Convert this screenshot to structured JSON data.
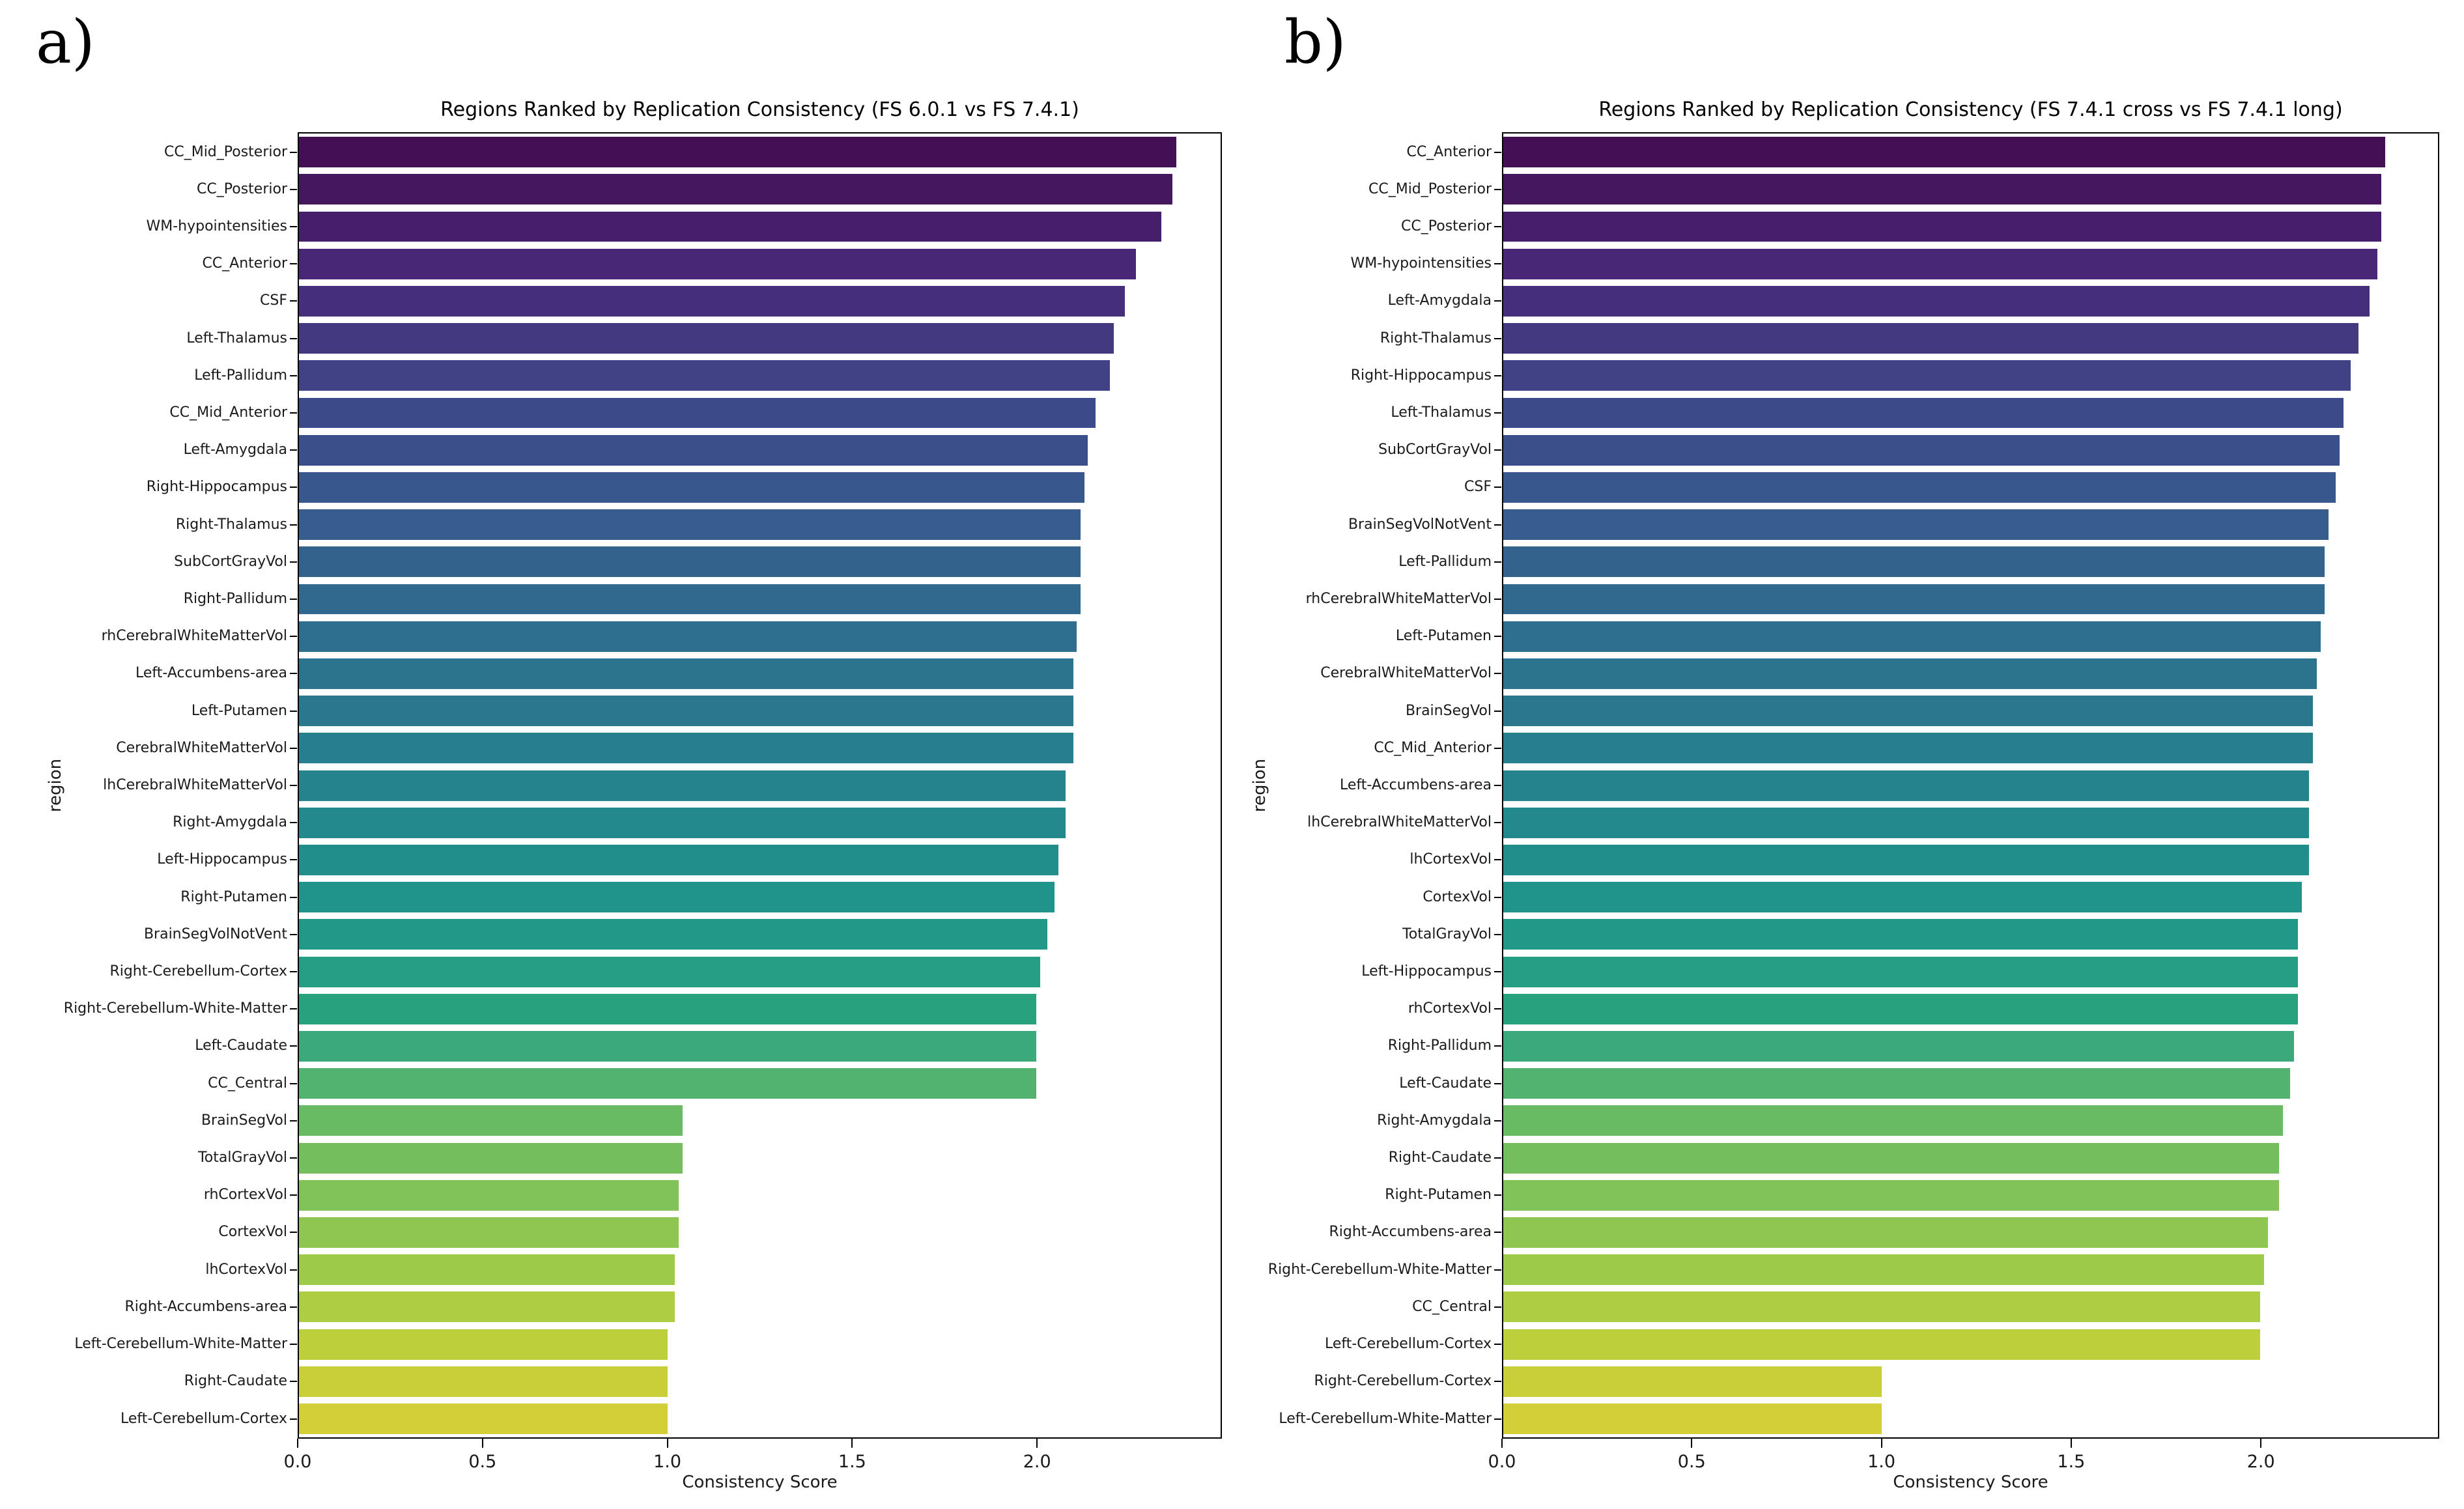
{
  "figure": {
    "background": "#ffffff",
    "panels": [
      {
        "label": "a)"
      },
      {
        "label": "b)"
      }
    ]
  },
  "colors": {
    "palette_name": "viridis",
    "viridis_stops": [
      {
        "t": 0.0,
        "hex": "#440f54"
      },
      {
        "t": 0.1,
        "hex": "#472a7a"
      },
      {
        "t": 0.2,
        "hex": "#3e4989"
      },
      {
        "t": 0.3,
        "hex": "#355e8d"
      },
      {
        "t": 0.4,
        "hex": "#2d718e"
      },
      {
        "t": 0.5,
        "hex": "#25838d"
      },
      {
        "t": 0.6,
        "hex": "#1f968a"
      },
      {
        "t": 0.68,
        "hex": "#27a37f"
      },
      {
        "t": 0.72,
        "hex": "#46ad76"
      },
      {
        "t": 0.76,
        "hex": "#66b964"
      },
      {
        "t": 0.82,
        "hex": "#7fc25a"
      },
      {
        "t": 0.88,
        "hex": "#9cca4a"
      },
      {
        "t": 0.94,
        "hex": "#bdd03b"
      },
      {
        "t": 1.0,
        "hex": "#d2cf38"
      }
    ],
    "spine": "#000000",
    "text": "#1a1a1a"
  },
  "chart_data": [
    {
      "type": "bar",
      "orientation": "horizontal",
      "panel_label": "a)",
      "title": "Regions Ranked by Replication Consistency (FS 6.0.1 vs FS 7.4.1)",
      "xlabel": "Consistency Score",
      "ylabel": "region",
      "xlim": [
        0,
        2.5
      ],
      "x_ticks": [
        0.0,
        0.5,
        1.0,
        1.5,
        2.0
      ],
      "x_tick_labels": [
        "0.0",
        "0.5",
        "1.0",
        "1.5",
        "2.0"
      ],
      "grid": false,
      "legend": null,
      "palette": "viridis",
      "categories": [
        "CC_Mid_Posterior",
        "CC_Posterior",
        "WM-hypointensities",
        "CC_Anterior",
        "CSF",
        "Left-Thalamus",
        "Left-Pallidum",
        "CC_Mid_Anterior",
        "Left-Amygdala",
        "Right-Hippocampus",
        "Right-Thalamus",
        "SubCortGrayVol",
        "Right-Pallidum",
        "rhCerebralWhiteMatterVol",
        "Left-Accumbens-area",
        "Left-Putamen",
        "CerebralWhiteMatterVol",
        "lhCerebralWhiteMatterVol",
        "Right-Amygdala",
        "Left-Hippocampus",
        "Right-Putamen",
        "BrainSegVolNotVent",
        "Right-Cerebellum-Cortex",
        "Right-Cerebellum-White-Matter",
        "Left-Caudate",
        "CC_Central",
        "BrainSegVol",
        "TotalGrayVol",
        "rhCortexVol",
        "CortexVol",
        "lhCortexVol",
        "Right-Accumbens-area",
        "Left-Cerebellum-White-Matter",
        "Right-Caudate",
        "Left-Cerebellum-Cortex"
      ],
      "values": [
        2.38,
        2.37,
        2.34,
        2.27,
        2.24,
        2.21,
        2.2,
        2.16,
        2.14,
        2.13,
        2.12,
        2.12,
        2.12,
        2.11,
        2.1,
        2.1,
        2.1,
        2.08,
        2.08,
        2.06,
        2.05,
        2.03,
        2.01,
        2.0,
        2.0,
        2.0,
        1.04,
        1.04,
        1.03,
        1.03,
        1.02,
        1.02,
        1.0,
        1.0,
        1.0
      ]
    },
    {
      "type": "bar",
      "orientation": "horizontal",
      "panel_label": "b)",
      "title": "Regions Ranked by Replication Consistency (FS 7.4.1 cross vs FS 7.4.1 long)",
      "xlabel": "Consistency Score",
      "ylabel": "region",
      "xlim": [
        0,
        2.47
      ],
      "x_ticks": [
        0.0,
        0.5,
        1.0,
        1.5,
        2.0
      ],
      "x_tick_labels": [
        "0.0",
        "0.5",
        "1.0",
        "1.5",
        "2.0"
      ],
      "grid": false,
      "legend": null,
      "palette": "viridis",
      "categories": [
        "CC_Anterior",
        "CC_Mid_Posterior",
        "CC_Posterior",
        "WM-hypointensities",
        "Left-Amygdala",
        "Right-Thalamus",
        "Right-Hippocampus",
        "Left-Thalamus",
        "SubCortGrayVol",
        "CSF",
        "BrainSegVolNotVent",
        "Left-Pallidum",
        "rhCerebralWhiteMatterVol",
        "Left-Putamen",
        "CerebralWhiteMatterVol",
        "BrainSegVol",
        "CC_Mid_Anterior",
        "Left-Accumbens-area",
        "lhCerebralWhiteMatterVol",
        "lhCortexVol",
        "CortexVol",
        "TotalGrayVol",
        "Left-Hippocampus",
        "rhCortexVol",
        "Right-Pallidum",
        "Left-Caudate",
        "Right-Amygdala",
        "Right-Caudate",
        "Right-Putamen",
        "Right-Accumbens-area",
        "Right-Cerebellum-White-Matter",
        "CC_Central",
        "Left-Cerebellum-Cortex",
        "Right-Cerebellum-Cortex",
        "Left-Cerebellum-White-Matter"
      ],
      "values": [
        2.33,
        2.32,
        2.32,
        2.31,
        2.29,
        2.26,
        2.24,
        2.22,
        2.21,
        2.2,
        2.18,
        2.17,
        2.17,
        2.16,
        2.15,
        2.14,
        2.14,
        2.13,
        2.13,
        2.13,
        2.11,
        2.1,
        2.1,
        2.1,
        2.09,
        2.08,
        2.06,
        2.05,
        2.05,
        2.02,
        2.01,
        2.0,
        2.0,
        1.0,
        1.0
      ]
    }
  ]
}
